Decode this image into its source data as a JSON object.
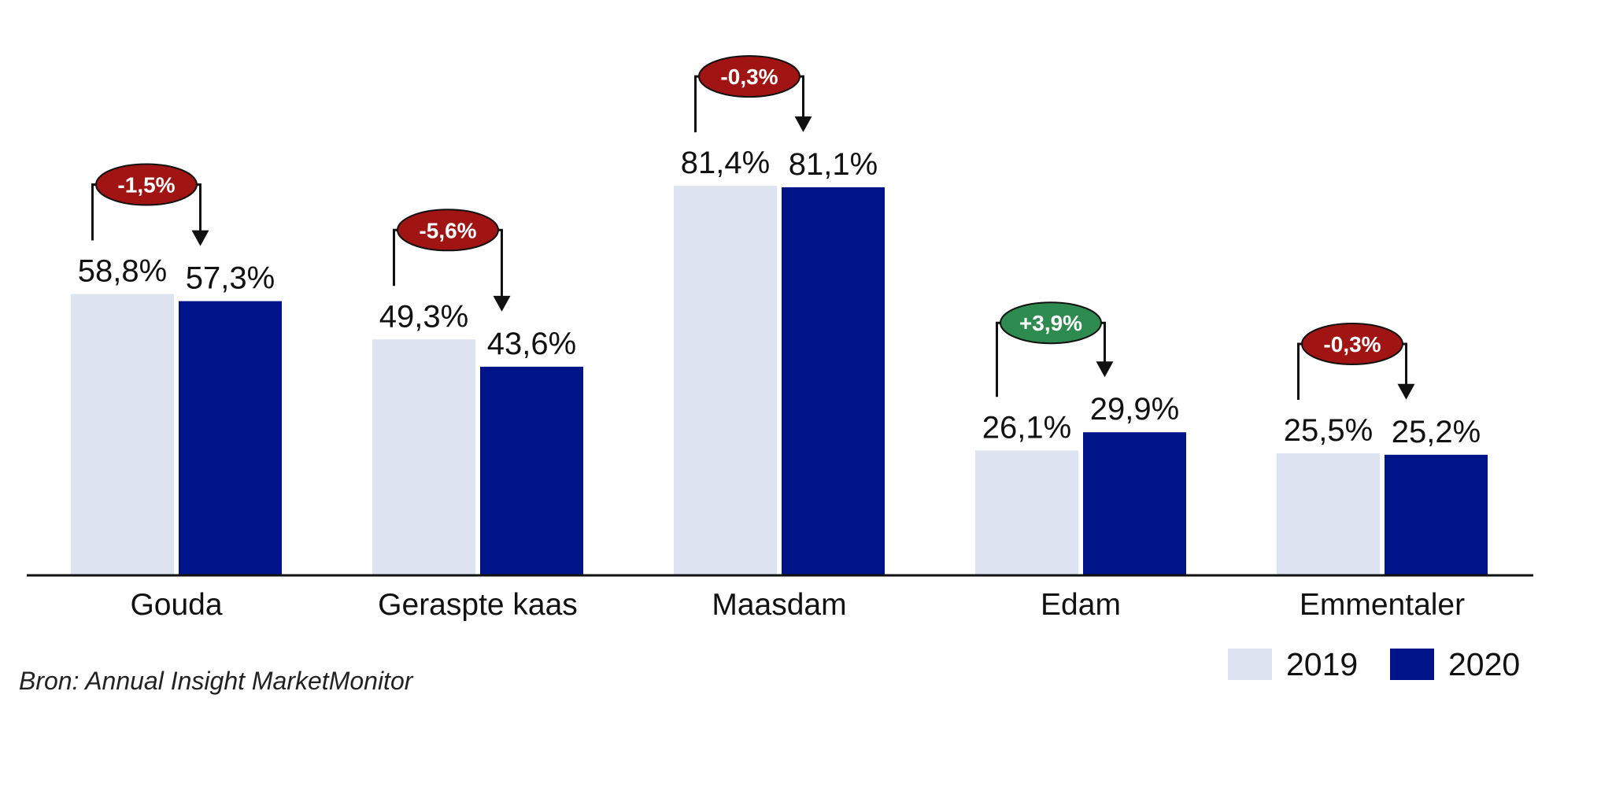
{
  "chart_data": {
    "type": "bar",
    "categories": [
      "Gouda",
      "Geraspte kaas",
      "Maasdam",
      "Edam",
      "Emmentaler"
    ],
    "series": [
      {
        "name": "2019",
        "values": [
          58.8,
          49.3,
          81.4,
          26.1,
          25.5
        ],
        "labels": [
          "58,8%",
          "49,3%",
          "81,4%",
          "26,1%",
          "25,5%"
        ],
        "color": "#dde3f0"
      },
      {
        "name": "2020",
        "values": [
          57.3,
          43.6,
          81.1,
          29.9,
          25.2
        ],
        "labels": [
          "57,3%",
          "43,6%",
          "81,1%",
          "29,9%",
          "25,2%"
        ],
        "color": "#001489"
      }
    ],
    "changes": [
      {
        "label": "-1,5%",
        "direction": "down"
      },
      {
        "label": "-5,6%",
        "direction": "down"
      },
      {
        "label": "-0,3%",
        "direction": "down"
      },
      {
        "label": "+3,9%",
        "direction": "up"
      },
      {
        "label": "-0,3%",
        "direction": "down"
      }
    ],
    "colors": {
      "negative_badge": "#a01414",
      "positive_badge": "#2e8b4f",
      "axis": "#111111"
    },
    "ylim": [
      0,
      100
    ],
    "grid": false,
    "legend_position": "bottom-right",
    "source": "Bron: Annual Insight MarketMonitor"
  }
}
